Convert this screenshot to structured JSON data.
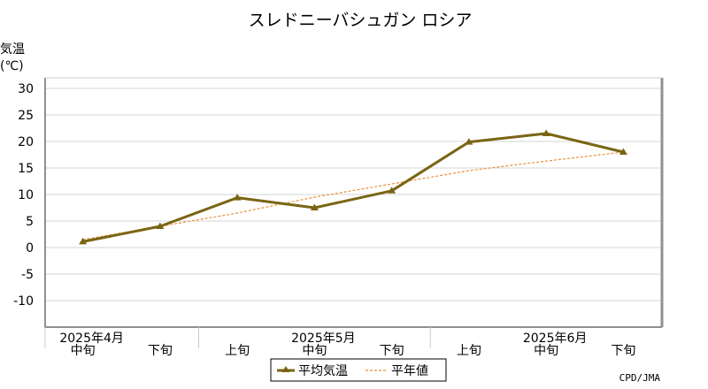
{
  "chart_data": {
    "type": "line",
    "title": "スレドニーバシュガン ロシア",
    "ylabel_line1": "気温",
    "ylabel_line2": "(℃)",
    "ylim": [
      -15,
      32
    ],
    "yticks": [
      30,
      25,
      20,
      15,
      10,
      5,
      0,
      -5,
      -10
    ],
    "grid": true,
    "categories": [
      "中旬",
      "下旬",
      "上旬",
      "中旬",
      "下旬",
      "上旬",
      "中旬",
      "下旬"
    ],
    "month_labels": [
      {
        "label": "2025年4月",
        "at_index": 0
      },
      {
        "label": "2025年5月",
        "at_index": 3
      },
      {
        "label": "2025年6月",
        "at_index": 6
      }
    ],
    "series": [
      {
        "name": "平均気温",
        "values": [
          1.1,
          4.0,
          9.4,
          7.5,
          10.7,
          19.9,
          21.5,
          18.0
        ],
        "color": "#7a6514",
        "style": "solid-marker"
      },
      {
        "name": "平年値",
        "values": [
          1.5,
          4.0,
          6.5,
          9.5,
          12.0,
          14.5,
          16.3,
          18.0
        ],
        "color": "#e8913a",
        "style": "dashed"
      }
    ],
    "legend_position": "bottom-center",
    "credit": "CPD/JMA"
  }
}
